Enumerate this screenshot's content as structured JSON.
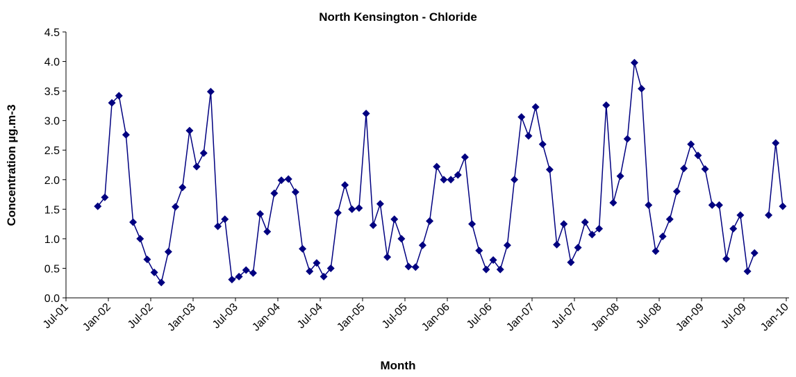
{
  "chart_data": {
    "type": "line",
    "title": "North Kensington - Chloride",
    "x_label": "Month",
    "y_label": "Concentration  µg.m-3",
    "color": "#000080",
    "marker": "diamond",
    "grid": false,
    "x": [
      "2001-11",
      "2001-12",
      "2002-01",
      "2002-02",
      "2002-03",
      "2002-04",
      "2002-05",
      "2002-06",
      "2002-07",
      "2002-08",
      "2002-09",
      "2002-10",
      "2002-11",
      "2002-12",
      "2003-01",
      "2003-02",
      "2003-03",
      "2003-04",
      "2003-05",
      "2003-06",
      "2003-07",
      "2003-08",
      "2003-09",
      "2003-10",
      "2003-11",
      "2003-12",
      "2004-01",
      "2004-02",
      "2004-03",
      "2004-04",
      "2004-05",
      "2004-06",
      "2004-07",
      "2004-08",
      "2004-09",
      "2004-10",
      "2004-11",
      "2004-12",
      "2005-01",
      "2005-02",
      "2005-03",
      "2005-04",
      "2005-05",
      "2005-06",
      "2005-07",
      "2005-08",
      "2005-09",
      "2005-10",
      "2005-11",
      "2005-12",
      "2006-01",
      "2006-02",
      "2006-03",
      "2006-04",
      "2006-05",
      "2006-06",
      "2006-07",
      "2006-08",
      "2006-09",
      "2006-10",
      "2006-11",
      "2006-12",
      "2007-01",
      "2007-02",
      "2007-03",
      "2007-04",
      "2007-05",
      "2007-06",
      "2007-07",
      "2007-08",
      "2007-09",
      "2007-10",
      "2007-11",
      "2007-12",
      "2008-01",
      "2008-02",
      "2008-03",
      "2008-04",
      "2008-05",
      "2008-06",
      "2008-07",
      "2008-08",
      "2008-09",
      "2008-10",
      "2008-11",
      "2008-12",
      "2009-01",
      "2009-02",
      "2009-03",
      "2009-04",
      "2009-05",
      "2009-06",
      "2009-07",
      "2009-08",
      "2009-09",
      "2009-10",
      "2009-11",
      "2009-12"
    ],
    "values": [
      1.55,
      1.7,
      3.3,
      3.42,
      2.76,
      1.28,
      1.0,
      0.65,
      0.43,
      0.26,
      0.78,
      1.54,
      1.87,
      2.83,
      2.22,
      2.45,
      3.49,
      1.21,
      1.33,
      0.31,
      0.36,
      0.47,
      0.42,
      1.42,
      1.12,
      1.77,
      1.99,
      2.01,
      1.79,
      0.83,
      0.45,
      0.59,
      0.36,
      0.5,
      1.44,
      1.91,
      1.5,
      1.52,
      3.12,
      1.23,
      1.59,
      0.69,
      1.33,
      1.0,
      0.53,
      0.52,
      0.89,
      1.3,
      2.22,
      2.0,
      2.0,
      2.08,
      2.38,
      1.25,
      0.8,
      0.48,
      0.64,
      0.48,
      0.89,
      2.0,
      3.06,
      2.74,
      3.23,
      2.6,
      2.17,
      0.9,
      1.25,
      0.6,
      0.85,
      1.28,
      1.07,
      1.17,
      3.26,
      1.61,
      2.06,
      2.69,
      3.98,
      3.54,
      1.57,
      0.79,
      1.04,
      1.33,
      1.8,
      2.19,
      2.6,
      2.41,
      2.18,
      1.57,
      1.57,
      0.66,
      1.17,
      1.4,
      0.45,
      0.76,
      null,
      1.4,
      2.62,
      1.55
    ],
    "xlim": [
      "2001-07",
      "2010-01"
    ],
    "xticks": [
      {
        "value": "2001-07",
        "label": "Jul-01"
      },
      {
        "value": "2002-01",
        "label": "Jan-02"
      },
      {
        "value": "2002-07",
        "label": "Jul-02"
      },
      {
        "value": "2003-01",
        "label": "Jan-03"
      },
      {
        "value": "2003-07",
        "label": "Jul-03"
      },
      {
        "value": "2004-01",
        "label": "Jan-04"
      },
      {
        "value": "2004-07",
        "label": "Jul-04"
      },
      {
        "value": "2005-01",
        "label": "Jan-05"
      },
      {
        "value": "2005-07",
        "label": "Jul-05"
      },
      {
        "value": "2006-01",
        "label": "Jan-06"
      },
      {
        "value": "2006-07",
        "label": "Jul-06"
      },
      {
        "value": "2007-01",
        "label": "Jan-07"
      },
      {
        "value": "2007-07",
        "label": "Jul-07"
      },
      {
        "value": "2008-01",
        "label": "Jan-08"
      },
      {
        "value": "2008-07",
        "label": "Jul-08"
      },
      {
        "value": "2009-01",
        "label": "Jan-09"
      },
      {
        "value": "2009-07",
        "label": "Jul-09"
      },
      {
        "value": "2010-01",
        "label": "Jan-10"
      }
    ],
    "ylim": [
      0,
      4.5
    ],
    "yticks": [
      {
        "value": 0,
        "label": "0.0"
      },
      {
        "value": 0.5,
        "label": "0.5"
      },
      {
        "value": 1,
        "label": "1.0"
      },
      {
        "value": 1.5,
        "label": "1.5"
      },
      {
        "value": 2,
        "label": "2.0"
      },
      {
        "value": 2.5,
        "label": "2.5"
      },
      {
        "value": 3,
        "label": "3.0"
      },
      {
        "value": 3.5,
        "label": "3.5"
      },
      {
        "value": 4,
        "label": "4.0"
      },
      {
        "value": 4.5,
        "label": "4.5"
      }
    ]
  }
}
